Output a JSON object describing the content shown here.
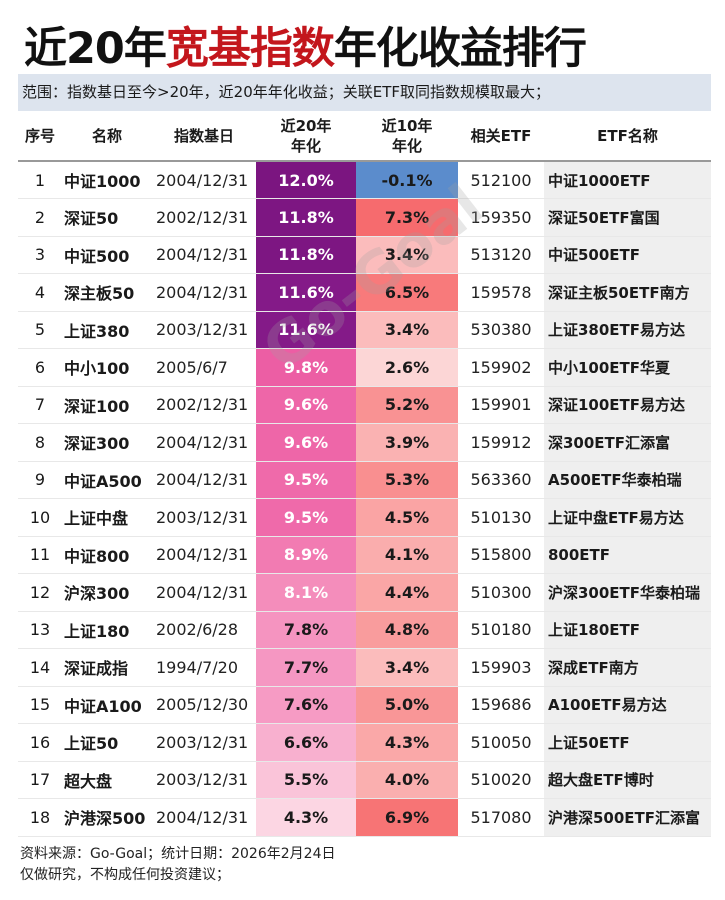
{
  "title": {
    "prefix": "近20年",
    "highlight": "宽基指数",
    "suffix": "年化收益排行"
  },
  "scope": "范围：指数基日至今>20年，近20年年化收益；关联ETF取同指数规模取最大；",
  "table": {
    "headers": [
      "序号",
      "名称",
      "指数基日",
      "近20年\n年化",
      "近10年\n年化",
      "相关ETF",
      "ETF名称"
    ],
    "rows": [
      {
        "seq": "1",
        "name": "中证1000",
        "date": "2004/12/31",
        "y20": "12.0%",
        "y10": "-0.1%",
        "code": "512100",
        "etf": "中证1000ETF",
        "c20": "#7b1580",
        "c10": "#5b8ccc",
        "t20": "#ffffff"
      },
      {
        "seq": "2",
        "name": "深证50",
        "date": "2002/12/31",
        "y20": "11.8%",
        "y10": "7.3%",
        "code": "159350",
        "etf": "深证50ETF富国",
        "c20": "#7d1682",
        "c10": "#f66b6e",
        "t20": "#ffffff"
      },
      {
        "seq": "3",
        "name": "中证500",
        "date": "2004/12/31",
        "y20": "11.8%",
        "y10": "3.4%",
        "code": "513120",
        "etf": "中证500ETF",
        "c20": "#7d1682",
        "c10": "#fbbcbc",
        "t20": "#ffffff"
      },
      {
        "seq": "4",
        "name": "深主板50",
        "date": "2004/12/31",
        "y20": "11.6%",
        "y10": "6.5%",
        "code": "159578",
        "etf": "深证主板50ETF南方",
        "c20": "#841a88",
        "c10": "#f87a7b",
        "t20": "#ffffff"
      },
      {
        "seq": "5",
        "name": "上证380",
        "date": "2003/12/31",
        "y20": "11.6%",
        "y10": "3.4%",
        "code": "530380",
        "etf": "上证380ETF易方达",
        "c20": "#841a88",
        "c10": "#fbbcbc",
        "t20": "#ffffff"
      },
      {
        "seq": "6",
        "name": "中小100",
        "date": "2005/6/7",
        "y20": "9.8%",
        "y10": "2.6%",
        "code": "159902",
        "etf": "中小100ETF华夏",
        "c20": "#ec5ea4",
        "c10": "#fcd6d6",
        "t20": "#ffffff"
      },
      {
        "seq": "7",
        "name": "深证100",
        "date": "2002/12/31",
        "y20": "9.6%",
        "y10": "5.2%",
        "code": "159901",
        "etf": "深证100ETF易方达",
        "c20": "#ee66a8",
        "c10": "#f99293",
        "t20": "#ffffff"
      },
      {
        "seq": "8",
        "name": "深证300",
        "date": "2004/12/31",
        "y20": "9.6%",
        "y10": "3.9%",
        "code": "159912",
        "etf": "深300ETF汇添富",
        "c20": "#ee66a8",
        "c10": "#fab2b2",
        "t20": "#ffffff"
      },
      {
        "seq": "9",
        "name": "中证A500",
        "date": "2004/12/31",
        "y20": "9.5%",
        "y10": "5.3%",
        "code": "563360",
        "etf": "A500ETF华泰柏瑞",
        "c20": "#ef6aaa",
        "c10": "#f98f90",
        "t20": "#ffffff"
      },
      {
        "seq": "10",
        "name": "上证中盘",
        "date": "2003/12/31",
        "y20": "9.5%",
        "y10": "4.5%",
        "code": "510130",
        "etf": "上证中盘ETF易方达",
        "c20": "#ef6aaa",
        "c10": "#faa4a4",
        "t20": "#ffffff"
      },
      {
        "seq": "11",
        "name": "中证800",
        "date": "2004/12/31",
        "y20": "8.9%",
        "y10": "4.1%",
        "code": "515800",
        "etf": "800ETF",
        "c20": "#f27bb2",
        "c10": "#faadad",
        "t20": "#ffffff"
      },
      {
        "seq": "12",
        "name": "沪深300",
        "date": "2004/12/31",
        "y20": "8.1%",
        "y10": "4.4%",
        "code": "510300",
        "etf": "沪深300ETF华泰柏瑞",
        "c20": "#f48dbb",
        "c10": "#faa6a6",
        "t20": "#ffffff"
      },
      {
        "seq": "13",
        "name": "上证180",
        "date": "2002/6/28",
        "y20": "7.8%",
        "y10": "4.8%",
        "code": "510180",
        "etf": "上证180ETF",
        "c20": "#f594c0",
        "c10": "#f99c9d",
        "t20": "#1a1a1a"
      },
      {
        "seq": "14",
        "name": "深证成指",
        "date": "1994/7/20",
        "y20": "7.7%",
        "y10": "3.4%",
        "code": "159903",
        "etf": "深成ETF南方",
        "c20": "#f597c2",
        "c10": "#fbbcbc",
        "t20": "#1a1a1a"
      },
      {
        "seq": "15",
        "name": "中证A100",
        "date": "2005/12/30",
        "y20": "7.6%",
        "y10": "5.0%",
        "code": "159686",
        "etf": "A100ETF易方达",
        "c20": "#f69bc4",
        "c10": "#f99697",
        "t20": "#1a1a1a"
      },
      {
        "seq": "16",
        "name": "上证50",
        "date": "2003/12/31",
        "y20": "6.6%",
        "y10": "4.3%",
        "code": "510050",
        "etf": "上证50ETF",
        "c20": "#f8b0cf",
        "c10": "#faa8a8",
        "t20": "#1a1a1a"
      },
      {
        "seq": "17",
        "name": "超大盘",
        "date": "2003/12/31",
        "y20": "5.5%",
        "y10": "4.0%",
        "code": "510020",
        "etf": "超大盘ETF博时",
        "c20": "#fac4d9",
        "c10": "#faafaf",
        "t20": "#1a1a1a"
      },
      {
        "seq": "18",
        "name": "沪港深500",
        "date": "2004/12/31",
        "y20": "4.3%",
        "y10": "6.9%",
        "code": "517080",
        "etf": "沪港深500ETF汇添富",
        "c20": "#fcd6e3",
        "c10": "#f77475",
        "t20": "#1a1a1a"
      }
    ]
  },
  "footer": {
    "source": "资料来源：Go-Goal；统计日期：2026年2月24日",
    "disclaimer": "仅做研究，不构成任何投资建议；"
  },
  "watermark": "Go-Goal"
}
